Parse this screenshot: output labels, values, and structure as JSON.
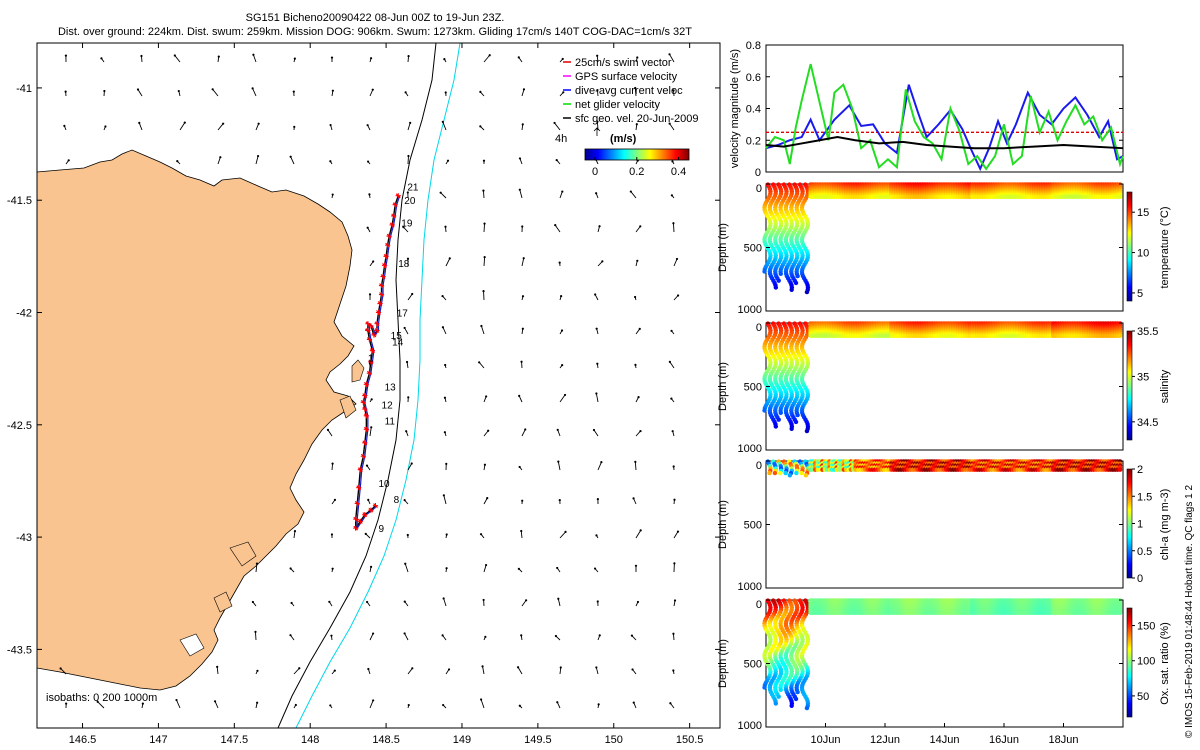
{
  "header": {
    "title_line1": "SG151 Bicheno20090422 08-Jun 00Z to 19-Jun 23Z.",
    "title_line2": "Dist. over ground: 224km. Dist. swum: 259km. Mission DOG: 906km. Swum: 1273km. Gliding 17cm/s 140T COG-DAC=1cm/s 32T"
  },
  "map": {
    "legend": [
      "25cm/s swim vector",
      "GPS surface velocity",
      "dive-avg current veloc",
      "net glider velocity",
      "sfc geo. vel. 20-Jun-2009"
    ],
    "legend_colors": [
      "#e00000",
      "#ff00ff",
      "#0000ff",
      "#00dd00",
      "#000000"
    ],
    "colorbar_label": "(m/s)",
    "colorbar_ticks": [
      "0",
      "0.2",
      "0.4"
    ],
    "colorbar_prefix": "4h",
    "isobath_label": "isobaths: 0   200   1000m",
    "land_color": "#f9c490",
    "isobath_colors": [
      "#000000",
      "#00d8e8"
    ],
    "track_color": "#1a1acc",
    "point_color": "#ff0000"
  },
  "chart_data": [
    {
      "type": "scatter",
      "name": "glider-track-map",
      "xlim": [
        146.2,
        150.7
      ],
      "ylim": [
        -43.85,
        -40.8
      ],
      "xticks": [
        "146.5",
        "147",
        "147.5",
        "148",
        "148.5",
        "149",
        "149.5",
        "150",
        "150.5"
      ],
      "yticks": [
        "-41",
        "-41.5",
        "-42",
        "-42.5",
        "-43",
        "-43.5"
      ],
      "track": [
        [
          148.58,
          -41.48
        ],
        [
          148.56,
          -41.52
        ],
        [
          148.55,
          -41.57
        ],
        [
          148.54,
          -41.61
        ],
        [
          148.52,
          -41.66
        ],
        [
          148.51,
          -41.7
        ],
        [
          148.5,
          -41.75
        ],
        [
          148.49,
          -41.79
        ],
        [
          148.48,
          -41.84
        ],
        [
          148.47,
          -41.88
        ],
        [
          148.47,
          -41.92
        ],
        [
          148.46,
          -41.96
        ],
        [
          148.45,
          -42.0
        ],
        [
          148.44,
          -42.05
        ],
        [
          148.44,
          -42.08
        ],
        [
          148.42,
          -42.1
        ],
        [
          148.4,
          -42.06
        ],
        [
          148.38,
          -42.05
        ],
        [
          148.38,
          -42.08
        ],
        [
          148.39,
          -42.12
        ],
        [
          148.41,
          -42.17
        ],
        [
          148.4,
          -42.22
        ],
        [
          148.39,
          -42.27
        ],
        [
          148.37,
          -42.32
        ],
        [
          148.36,
          -42.37
        ],
        [
          148.35,
          -42.4
        ],
        [
          148.36,
          -42.43
        ],
        [
          148.37,
          -42.46
        ],
        [
          148.37,
          -42.52
        ],
        [
          148.36,
          -42.58
        ],
        [
          148.35,
          -42.64
        ],
        [
          148.33,
          -42.7
        ],
        [
          148.32,
          -42.78
        ],
        [
          148.31,
          -42.85
        ],
        [
          148.3,
          -42.92
        ],
        [
          148.3,
          -42.96
        ],
        [
          148.33,
          -42.93
        ],
        [
          148.36,
          -42.9
        ],
        [
          148.4,
          -42.88
        ],
        [
          148.43,
          -42.86
        ]
      ],
      "day_labels": [
        {
          "label": "21",
          "lon": 148.64,
          "lat": -41.44
        },
        {
          "label": "20",
          "lon": 148.62,
          "lat": -41.5
        },
        {
          "label": "19",
          "lon": 148.6,
          "lat": -41.6
        },
        {
          "label": "18",
          "lon": 148.58,
          "lat": -41.78
        },
        {
          "label": "17",
          "lon": 148.57,
          "lat": -42.0
        },
        {
          "label": "15",
          "lon": 148.53,
          "lat": -42.1
        },
        {
          "label": "14",
          "lon": 148.54,
          "lat": -42.13
        },
        {
          "label": "1",
          "lon": 148.38,
          "lat": -42.2
        },
        {
          "label": "13",
          "lon": 148.49,
          "lat": -42.33
        },
        {
          "label": "12",
          "lon": 148.47,
          "lat": -42.41
        },
        {
          "label": "11",
          "lon": 148.49,
          "lat": -42.48
        },
        {
          "label": "10",
          "lon": 148.45,
          "lat": -42.76
        },
        {
          "label": "8",
          "lon": 148.55,
          "lat": -42.83
        },
        {
          "label": "9",
          "lon": 148.45,
          "lat": -42.96
        }
      ]
    },
    {
      "type": "line",
      "name": "velocity-magnitude",
      "ylabel": "velocity magnitude (m/s)",
      "ylim": [
        0,
        0.8
      ],
      "yticks": [
        "0",
        "0.2",
        "0.4",
        "0.6",
        "0.8"
      ],
      "x_range_days": [
        8,
        20
      ],
      "series": [
        {
          "name": "swim vector",
          "color": "#e00000",
          "dashed": true,
          "t": [
            8,
            20
          ],
          "values": [
            0.25,
            0.25
          ]
        },
        {
          "name": "dive-avg current",
          "color": "#1a1aee",
          "t": [
            8.0,
            8.4,
            8.8,
            9.2,
            9.5,
            9.8,
            10.3,
            10.8,
            11.2,
            11.6,
            12.0,
            12.4,
            12.8,
            13.1,
            13.4,
            13.8,
            14.2,
            14.6,
            14.9,
            15.2,
            15.5,
            15.8,
            16.1,
            16.4,
            16.8,
            17.2,
            17.6,
            18.0,
            18.4,
            18.8,
            19.2,
            19.5,
            19.8,
            20.0
          ],
          "values": [
            0.15,
            0.17,
            0.2,
            0.22,
            0.33,
            0.2,
            0.33,
            0.42,
            0.29,
            0.3,
            0.18,
            0.12,
            0.55,
            0.38,
            0.22,
            0.3,
            0.39,
            0.27,
            0.14,
            0.02,
            0.15,
            0.32,
            0.18,
            0.3,
            0.5,
            0.36,
            0.3,
            0.4,
            0.47,
            0.36,
            0.22,
            0.32,
            0.08,
            0.1
          ]
        },
        {
          "name": "net glider velocity",
          "color": "#22dd22",
          "t": [
            8.0,
            8.3,
            8.6,
            8.8,
            9.0,
            9.2,
            9.5,
            9.7,
            9.9,
            10.1,
            10.3,
            10.6,
            10.9,
            11.2,
            11.5,
            11.8,
            12.1,
            12.4,
            12.7,
            13.0,
            13.3,
            13.6,
            13.9,
            14.2,
            14.5,
            14.8,
            15.1,
            15.4,
            15.7,
            16.0,
            16.3,
            16.6,
            16.9,
            17.2,
            17.5,
            17.8,
            18.1,
            18.4,
            18.7,
            19.0,
            19.3,
            19.6,
            19.9,
            20.0
          ],
          "values": [
            0.15,
            0.22,
            0.2,
            0.05,
            0.28,
            0.45,
            0.68,
            0.52,
            0.36,
            0.2,
            0.5,
            0.55,
            0.4,
            0.15,
            0.2,
            0.03,
            0.08,
            0.03,
            0.52,
            0.32,
            0.22,
            0.18,
            0.08,
            0.4,
            0.26,
            0.05,
            0.1,
            0.02,
            0.1,
            0.3,
            0.05,
            0.1,
            0.48,
            0.25,
            0.38,
            0.2,
            0.32,
            0.42,
            0.3,
            0.35,
            0.2,
            0.28,
            0.05,
            0.1
          ]
        },
        {
          "name": "sfc geo. vel.",
          "color": "#000000",
          "t": [
            8,
            8.6,
            9.2,
            9.8,
            10.4,
            11.0,
            11.8,
            12.6,
            13.4,
            14.2,
            15.0,
            16.0,
            17.0,
            18.0,
            19.0,
            20.0
          ],
          "values": [
            0.17,
            0.16,
            0.18,
            0.2,
            0.22,
            0.2,
            0.18,
            0.19,
            0.17,
            0.16,
            0.15,
            0.15,
            0.16,
            0.17,
            0.16,
            0.15
          ]
        }
      ]
    },
    {
      "type": "scatter",
      "name": "temperature-section",
      "ylabel": "Depth (m)",
      "ylim": [
        0,
        1000
      ],
      "colorbar_label": "temperature (°C)",
      "colorbar_ticks": [
        "5",
        "10",
        "15"
      ],
      "clim": [
        4,
        17.5
      ],
      "initial_max_depth": 880,
      "surface_values": [
        15.2,
        15.6,
        15.0,
        14.8
      ]
    },
    {
      "type": "scatter",
      "name": "salinity-section",
      "ylabel": "Depth (m)",
      "ylim": [
        0,
        1000
      ],
      "colorbar_label": "salinity",
      "colorbar_ticks": [
        "34.5",
        "35",
        "35.5"
      ],
      "clim": [
        34.3,
        35.5
      ],
      "initial_max_depth": 880,
      "surface_values": [
        35.25,
        35.3,
        35.28,
        35.35
      ]
    },
    {
      "type": "scatter",
      "name": "chlorophyll-section",
      "ylabel": "Depth (m)",
      "ylim": [
        0,
        1000
      ],
      "colorbar_label": "chl-a (mg m-3)",
      "colorbar_ticks": [
        "0",
        "0.5",
        "1",
        "1.5",
        "2"
      ],
      "clim": [
        0,
        2
      ],
      "initial_max_depth": 120,
      "surface_values": [
        1.8,
        2.0,
        1.9,
        2.0
      ]
    },
    {
      "type": "scatter",
      "name": "oxygen-section",
      "ylabel": "Depth (m)",
      "ylim": [
        0,
        1000
      ],
      "colorbar_label": "Ox. sat. ratio (%)",
      "colorbar_ticks": [
        "50",
        "100",
        "150"
      ],
      "clim": [
        20,
        175
      ],
      "initial_max_depth": 880,
      "surface_values": [
        98,
        100,
        95,
        99
      ]
    }
  ],
  "time_axis": {
    "ticks": [
      "10Jun",
      "12Jun",
      "14Jun",
      "16Jun",
      "18Jun"
    ],
    "tick_days": [
      10,
      12,
      14,
      16,
      18
    ]
  },
  "footer_vertical": "© IMOS 15-Feb-2019 01:48:44 Hobart time. QC flags 1  2"
}
